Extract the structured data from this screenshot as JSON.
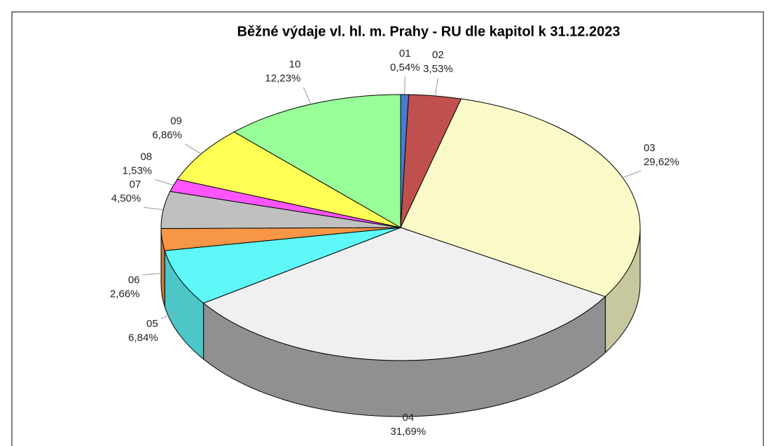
{
  "chart_data": {
    "type": "pie3d",
    "title": "Běžné výdaje vl. hl. m. Prahy - RU dle kapitol k 31.12.2023",
    "categories": [
      "01",
      "02",
      "03",
      "04",
      "05",
      "06",
      "07",
      "08",
      "09",
      "10"
    ],
    "values": [
      0.54,
      3.53,
      29.62,
      31.69,
      6.84,
      2.66,
      4.5,
      1.53,
      6.86,
      12.23
    ],
    "value_labels": [
      "0,54%",
      "3,53%",
      "29,62%",
      "31,69%",
      "6,84%",
      "2,66%",
      "4,50%",
      "1,53%",
      "6,86%",
      "12,23%"
    ],
    "colors": [
      "#4a7bd0",
      "#c0504d",
      "#fafac8",
      "#f0f0f0",
      "#5ff8f8",
      "#f79646",
      "#c0c0c0",
      "#ff55ff",
      "#ffff55",
      "#99ff99"
    ]
  }
}
